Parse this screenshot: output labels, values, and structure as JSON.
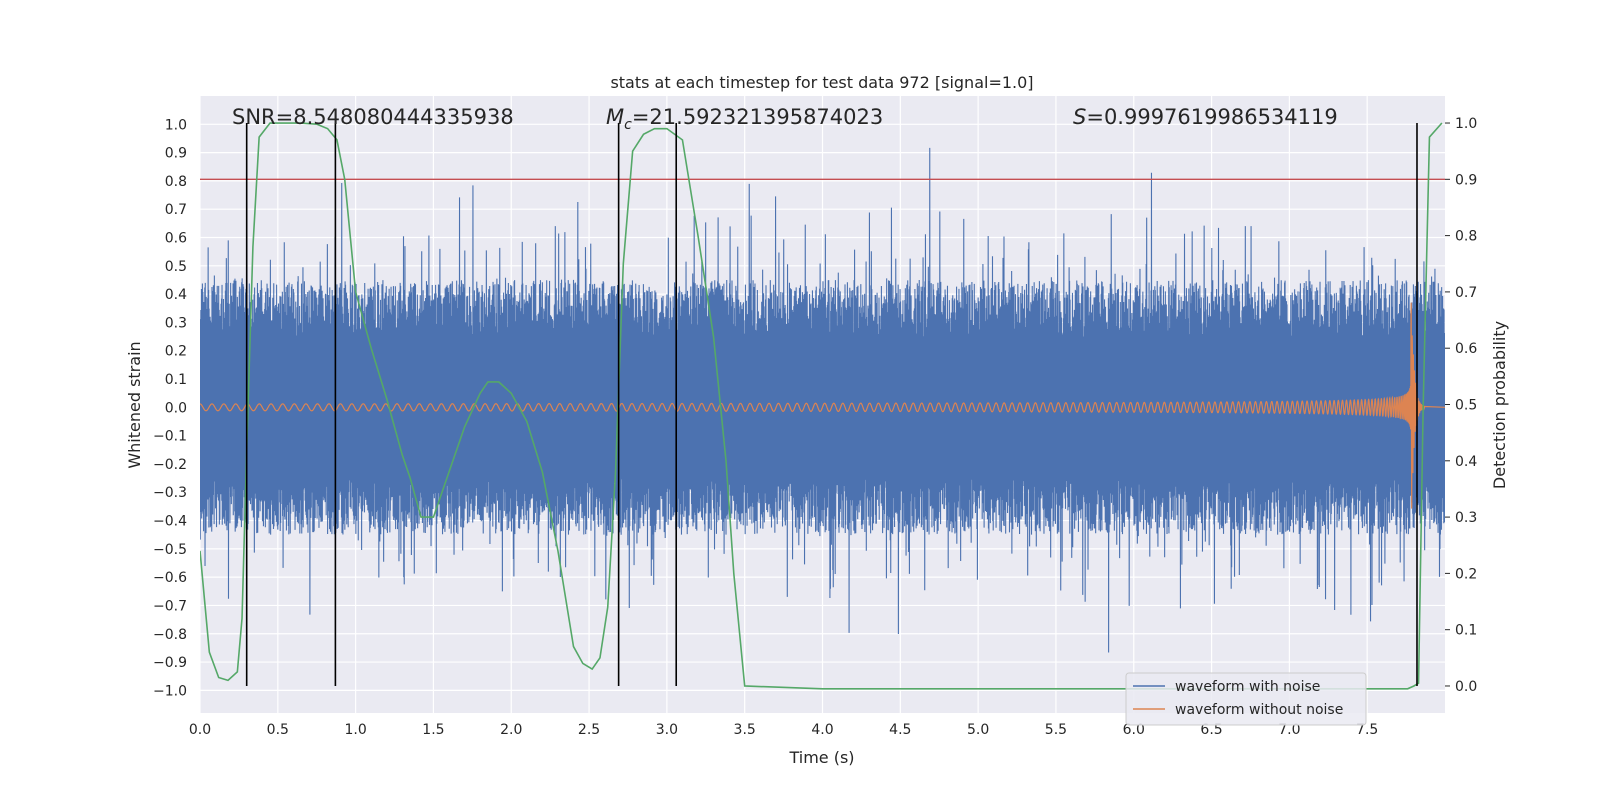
{
  "chart_data": {
    "type": "line",
    "title": "stats at each timestep for test data 972 [signal=1.0]",
    "xlabel": "Time (s)",
    "ylabel": "Whitened strain",
    "y2label": "Detection probability",
    "xlim": [
      0,
      8.0
    ],
    "ylim": [
      -1.08,
      1.1
    ],
    "y2lim": [
      -0.048,
      1.048
    ],
    "xticks": [
      0.0,
      0.5,
      1.0,
      1.5,
      2.0,
      2.5,
      3.0,
      3.5,
      4.0,
      4.5,
      5.0,
      5.5,
      6.0,
      6.5,
      7.0,
      7.5
    ],
    "xtick_labels": [
      "0.0",
      "0.5",
      "1.0",
      "1.5",
      "2.0",
      "2.5",
      "3.0",
      "3.5",
      "4.0",
      "4.5",
      "5.0",
      "5.5",
      "6.0",
      "6.5",
      "7.0",
      "7.5"
    ],
    "yticks": [
      1.0,
      0.9,
      0.8,
      0.7,
      0.6,
      0.5,
      0.4,
      0.3,
      0.2,
      0.1,
      0.0,
      -0.1,
      -0.2,
      -0.3,
      -0.4,
      -0.5,
      -0.6,
      -0.7,
      -0.8,
      -0.9,
      -1.0
    ],
    "ytick_labels": [
      "1.0",
      "0.9",
      "0.8",
      "0.7",
      "0.6",
      "0.5",
      "0.4",
      "0.3",
      "0.2",
      "0.1",
      "0.0",
      "−0.1",
      "−0.2",
      "−0.3",
      "−0.4",
      "−0.5",
      "−0.6",
      "−0.7",
      "−0.8",
      "−0.9",
      "−1.0"
    ],
    "y2ticks": [
      1.0,
      0.9,
      0.8,
      0.7,
      0.6,
      0.5,
      0.4,
      0.3,
      0.2,
      0.1,
      0.0
    ],
    "y2tick_labels": [
      "1.0",
      "0.9",
      "0.8",
      "0.7",
      "0.6",
      "0.5",
      "0.4",
      "0.3",
      "0.2",
      "0.1",
      "0.0"
    ],
    "annotations": {
      "snr": "SNR=8.548080444335938",
      "mc_symbol": "M",
      "mc_sub": "c",
      "mc_value": "=21.592321395874023",
      "s_symbol": "S",
      "s_value": "=0.9997619986534119"
    },
    "threshold": {
      "axis": "y2",
      "value": 0.9,
      "color": "#c44e52"
    },
    "vertical_lines": [
      0.3,
      0.87,
      2.69,
      3.06,
      7.82
    ],
    "noise": {
      "duration": 8.0,
      "typical_amplitude": 0.45,
      "max": 1.0,
      "min": -0.98
    },
    "series": [
      {
        "name": "waveform with noise",
        "color": "#4c72b0"
      },
      {
        "name": "waveform without noise",
        "color": "#dd8452",
        "model": "chirp",
        "merger_time": 7.78,
        "start_amplitude": 0.012,
        "peak_amplitude": 0.5,
        "start_frequency_hz": 13
      },
      {
        "name": "detection probability",
        "color": "#55a868",
        "axis": "y2",
        "x": [
          0.0,
          0.06,
          0.12,
          0.18,
          0.24,
          0.27,
          0.3,
          0.34,
          0.38,
          0.45,
          0.55,
          0.65,
          0.75,
          0.82,
          0.88,
          0.93,
          1.0,
          1.1,
          1.2,
          1.3,
          1.35,
          1.42,
          1.5,
          1.6,
          1.7,
          1.8,
          1.85,
          1.92,
          2.0,
          2.1,
          2.2,
          2.3,
          2.4,
          2.46,
          2.52,
          2.57,
          2.62,
          2.67,
          2.72,
          2.78,
          2.85,
          2.92,
          3.0,
          3.1,
          3.2,
          3.3,
          3.38,
          3.43,
          3.5,
          4.0,
          5.0,
          6.0,
          7.0,
          7.5,
          7.76,
          7.8,
          7.83,
          7.86,
          7.9,
          7.98
        ],
        "values": [
          0.24,
          0.06,
          0.015,
          0.01,
          0.025,
          0.12,
          0.42,
          0.78,
          0.975,
          1.0,
          1.0,
          1.0,
          0.998,
          0.99,
          0.97,
          0.9,
          0.7,
          0.6,
          0.51,
          0.41,
          0.37,
          0.3,
          0.3,
          0.38,
          0.46,
          0.52,
          0.54,
          0.54,
          0.52,
          0.47,
          0.38,
          0.24,
          0.07,
          0.04,
          0.03,
          0.05,
          0.14,
          0.38,
          0.75,
          0.95,
          0.98,
          0.99,
          0.99,
          0.97,
          0.8,
          0.62,
          0.4,
          0.2,
          0.0,
          -0.005,
          -0.005,
          -0.005,
          -0.005,
          -0.005,
          -0.005,
          0.0,
          0.005,
          0.5,
          0.975,
          1.0
        ]
      }
    ],
    "legend": {
      "position": "lower-right",
      "entries": [
        "waveform with noise",
        "waveform without noise"
      ]
    }
  }
}
